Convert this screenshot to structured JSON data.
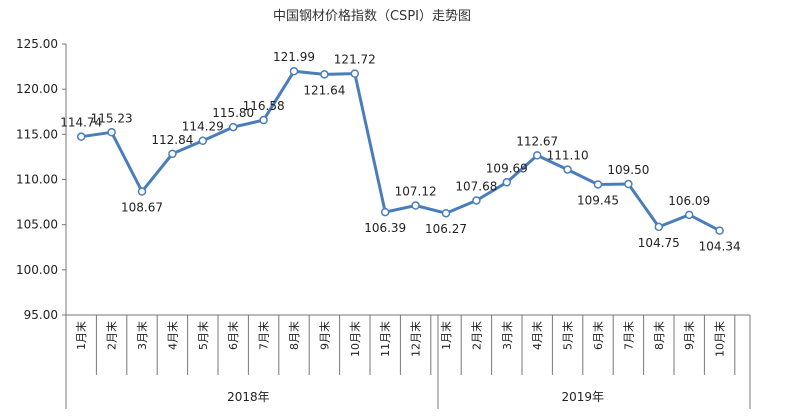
{
  "chart_data": {
    "type": "line",
    "title": "中国钢材价格指数（CSPI）走势图",
    "xlabel": "",
    "ylabel": "",
    "ylim": [
      95,
      125
    ],
    "yticks": [
      "95.00",
      "100.00",
      "105.00",
      "110.00",
      "115.00",
      "120.00",
      "125.00"
    ],
    "grid": false,
    "legend": "none",
    "line_color": "#4a7ebb",
    "groups": [
      {
        "name": "2018年",
        "categories": [
          "1月末",
          "2月末",
          "3月末",
          "4月末",
          "5月末",
          "6月末",
          "7月末",
          "8月末",
          "9月末",
          "10月末",
          "11月末",
          "12月末"
        ]
      },
      {
        "name": "2019年",
        "categories": [
          "1月末",
          "2月末",
          "3月末",
          "4月末",
          "5月末",
          "6月末",
          "7月末",
          "8月末",
          "9月末",
          "10月末"
        ]
      }
    ],
    "categories": [
      "1月末",
      "2月末",
      "3月末",
      "4月末",
      "5月末",
      "6月末",
      "7月末",
      "8月末",
      "9月末",
      "10月末",
      "11月末",
      "12月末",
      "1月末",
      "2月末",
      "3月末",
      "4月末",
      "5月末",
      "6月末",
      "7月末",
      "8月末",
      "9月末",
      "10月末"
    ],
    "values": [
      114.74,
      115.23,
      108.67,
      112.84,
      114.29,
      115.8,
      116.58,
      121.99,
      121.64,
      121.72,
      106.39,
      107.12,
      106.27,
      107.68,
      109.69,
      112.67,
      111.1,
      109.45,
      109.5,
      104.75,
      106.09,
      104.34
    ],
    "data_labels": [
      "114.74",
      "115.23",
      "108.67",
      "112.84",
      "114.29",
      "115.80",
      "116.58",
      "121.99",
      "121.64",
      "121.72",
      "106.39",
      "107.12",
      "106.27",
      "107.68",
      "109.69",
      "112.67",
      "111.10",
      "109.45",
      "109.50",
      "104.75",
      "106.09",
      "104.34"
    ]
  }
}
